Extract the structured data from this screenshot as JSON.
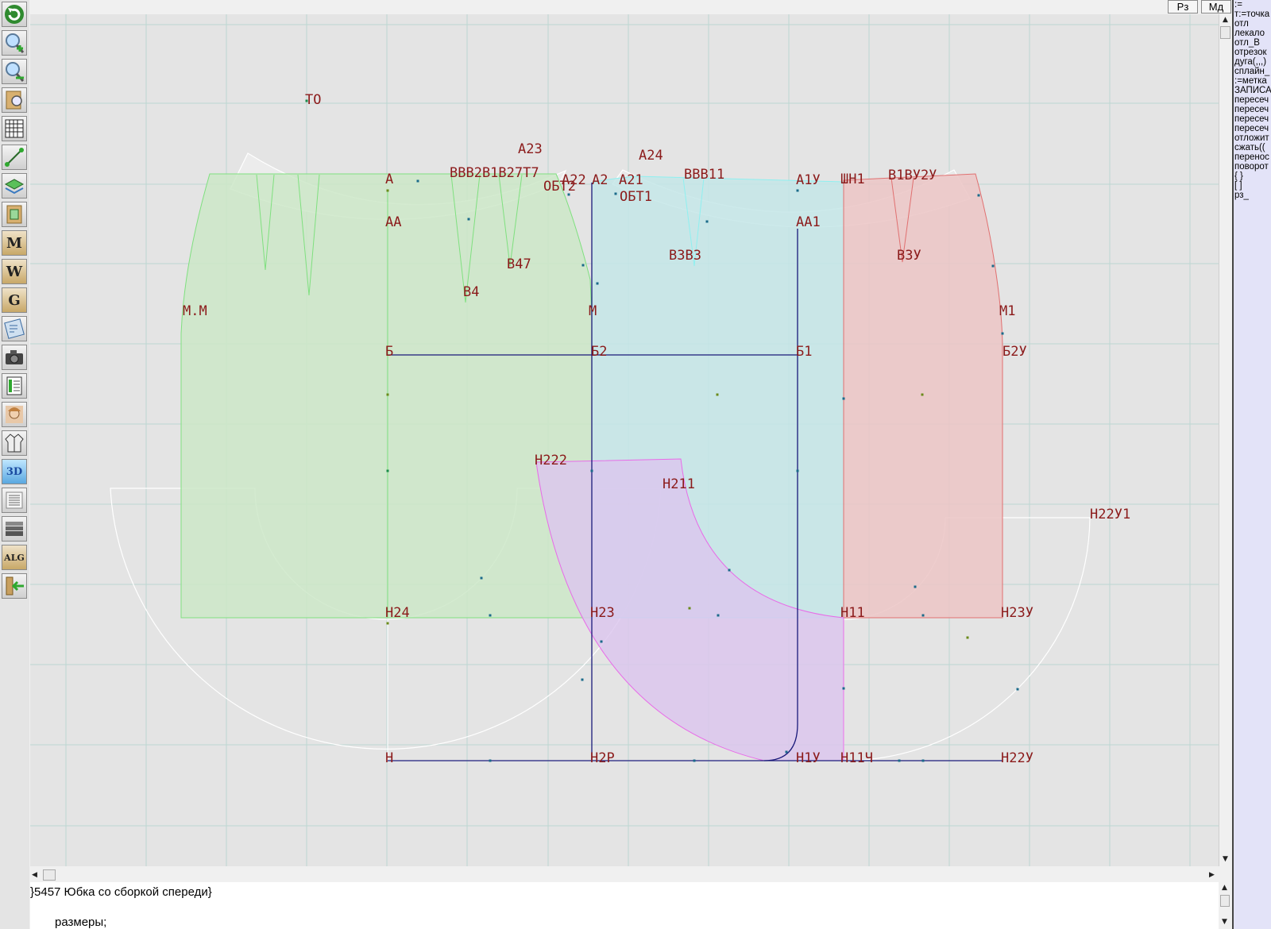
{
  "app": {
    "top_buttons": [
      "Рз",
      "Мд"
    ],
    "toolbar": [
      {
        "name": "refresh-icon"
      },
      {
        "name": "zoom-in-icon"
      },
      {
        "name": "zoom-out-icon"
      },
      {
        "name": "pattern-view-icon"
      },
      {
        "name": "grid-icon"
      },
      {
        "name": "line-tool-icon"
      },
      {
        "name": "layer-icon"
      },
      {
        "name": "pattern-piece-icon"
      },
      {
        "name": "measurements-m-icon",
        "letter": "M"
      },
      {
        "name": "compass-w-icon",
        "letter": "W"
      },
      {
        "name": "curve-g-icon",
        "letter": "G"
      },
      {
        "name": "layout-icon"
      },
      {
        "name": "camera-icon"
      },
      {
        "name": "spreadsheet-icon"
      },
      {
        "name": "portrait-icon"
      },
      {
        "name": "jacket-icon"
      },
      {
        "name": "view-3d-icon",
        "letter": "3D"
      },
      {
        "name": "document-icon"
      },
      {
        "name": "books-icon"
      },
      {
        "name": "algorithm-icon",
        "letter": "ALG"
      },
      {
        "name": "exit-icon"
      }
    ]
  },
  "drawing": {
    "point_labels": [
      {
        "text": "ТО"
      },
      {
        "text": "А23"
      },
      {
        "text": "А24"
      },
      {
        "text": "А"
      },
      {
        "text": "ВВВ2В1В27Т7"
      },
      {
        "text": "А22"
      },
      {
        "text": "А2"
      },
      {
        "text": "А21"
      },
      {
        "text": "ВВВ11"
      },
      {
        "text": "А1У"
      },
      {
        "text": "ШН1"
      },
      {
        "text": "В1ВУ2У"
      },
      {
        "text": "ОБТ2"
      },
      {
        "text": "ОБТ1"
      },
      {
        "text": "АА"
      },
      {
        "text": "АА1"
      },
      {
        "text": "В47"
      },
      {
        "text": "В3В3"
      },
      {
        "text": "В3У"
      },
      {
        "text": "В4"
      },
      {
        "text": "М.М"
      },
      {
        "text": "М"
      },
      {
        "text": "М1"
      },
      {
        "text": "Б"
      },
      {
        "text": "Б2"
      },
      {
        "text": "Б1"
      },
      {
        "text": "Б2У"
      },
      {
        "text": "Н222"
      },
      {
        "text": "Н211"
      },
      {
        "text": "Н22У1"
      },
      {
        "text": "Н24"
      },
      {
        "text": "Н23"
      },
      {
        "text": "Н11"
      },
      {
        "text": "Н23У"
      },
      {
        "text": "Н"
      },
      {
        "text": "Н2Р"
      },
      {
        "text": "Н1У"
      },
      {
        "text": "Н11Ч"
      },
      {
        "text": "Н22У"
      }
    ]
  },
  "right_panel": {
    "lines": [
      ":=",
      "т:=точка",
      "отл",
      "лекало",
      "отл_В",
      "отрезок",
      "дуга(,,,)",
      "сплайн_",
      ":=метка",
      "ЗАПИСА",
      "пересеч",
      "пересеч",
      "пересеч",
      "пересеч",
      "отложит",
      "сжать((",
      "перенос",
      "поворот",
      "{ }",
      "[ ]",
      "рз_"
    ]
  },
  "script_editor": {
    "line1": "}5457 Юбка со сборкой спереди}",
    "line2": "размеры;"
  },
  "colors": {
    "canvas_bg": "#e4e4e4",
    "grid": "#bcd6d2",
    "front_piece": "#cde8c8",
    "back_piece": "#c6e6e8",
    "side_piece": "#ecc8c8",
    "flounce_piece": "#e2c6ec",
    "label_color": "#8b1a1a",
    "construction_line": "#1a1a7a"
  }
}
